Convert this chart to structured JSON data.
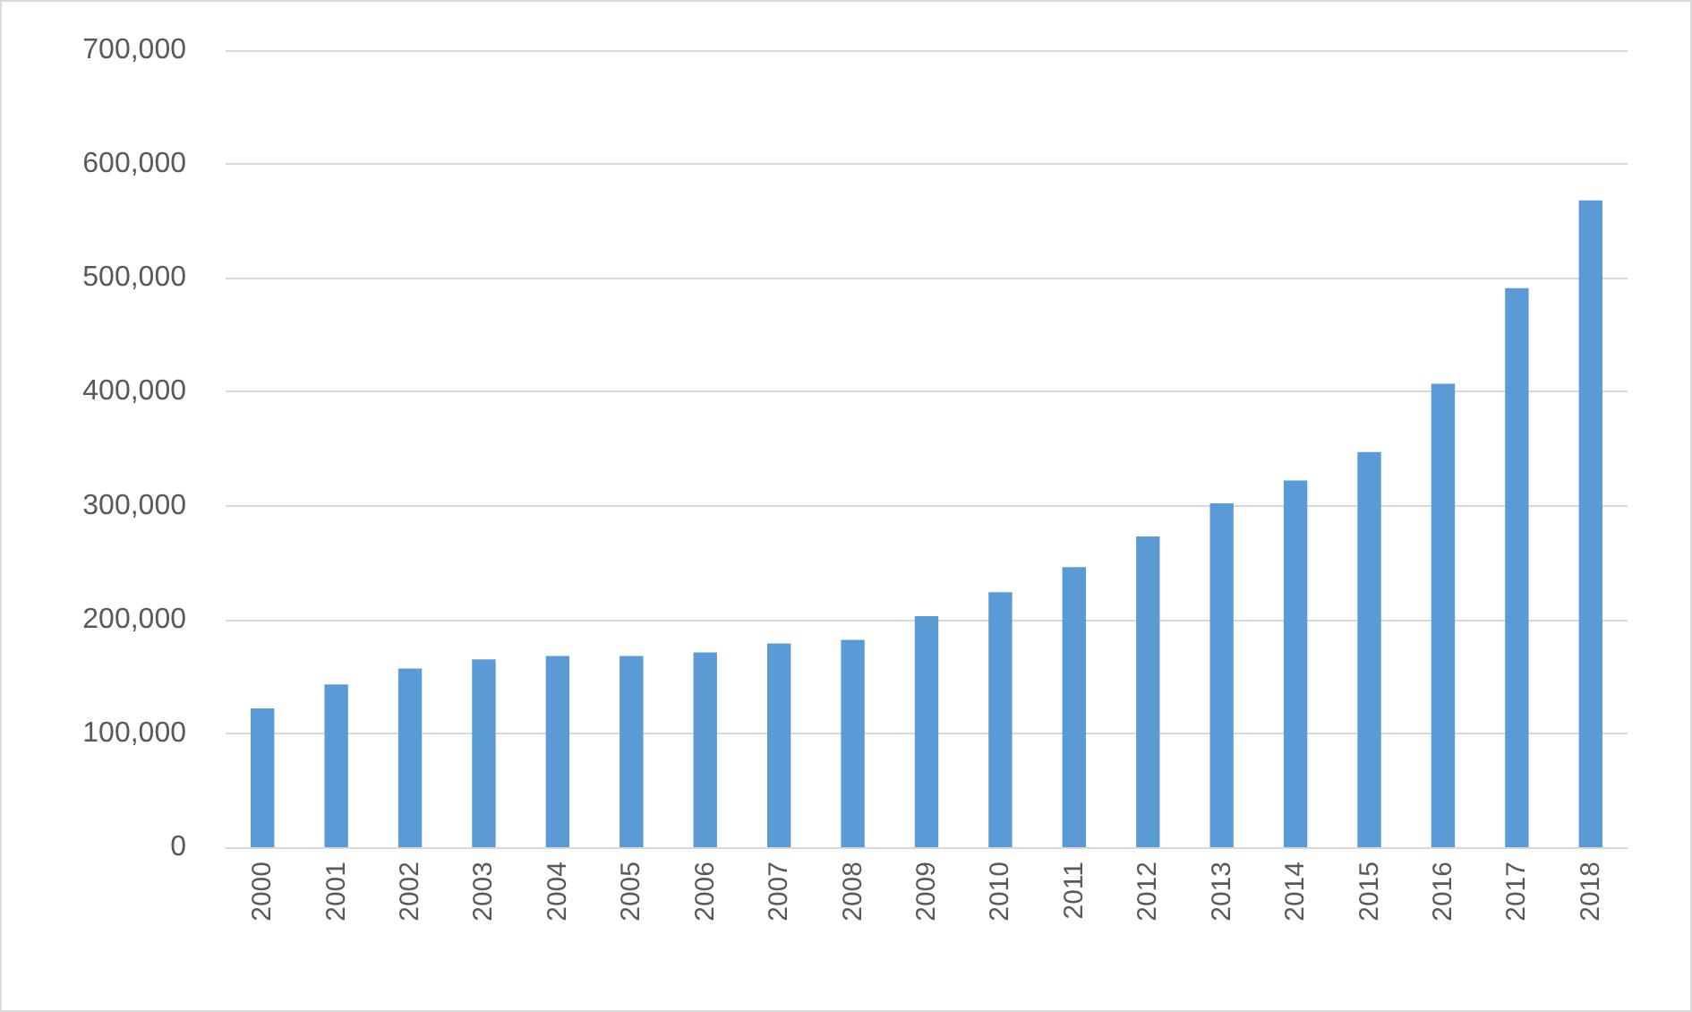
{
  "chart_data": {
    "type": "bar",
    "categories": [
      "2000",
      "2001",
      "2002",
      "2003",
      "2004",
      "2005",
      "2006",
      "2007",
      "2008",
      "2009",
      "2010",
      "2011",
      "2012",
      "2013",
      "2014",
      "2015",
      "2016",
      "2017",
      "2018"
    ],
    "values": [
      122000,
      143000,
      157000,
      165000,
      168000,
      168000,
      171000,
      179000,
      182000,
      203000,
      224000,
      246000,
      273000,
      302000,
      322000,
      347000,
      407000,
      491000,
      568000
    ],
    "color": "#5b9bd5",
    "ylim": [
      0,
      700000
    ],
    "yticks": [
      {
        "value": 0,
        "label": "0"
      },
      {
        "value": 100000,
        "label": "100,000"
      },
      {
        "value": 200000,
        "label": "200,000"
      },
      {
        "value": 300000,
        "label": "300,000"
      },
      {
        "value": 400000,
        "label": "400,000"
      },
      {
        "value": 500000,
        "label": "500,000"
      },
      {
        "value": 600000,
        "label": "600,000"
      },
      {
        "value": 700000,
        "label": "700,000"
      }
    ],
    "grid": "y"
  }
}
